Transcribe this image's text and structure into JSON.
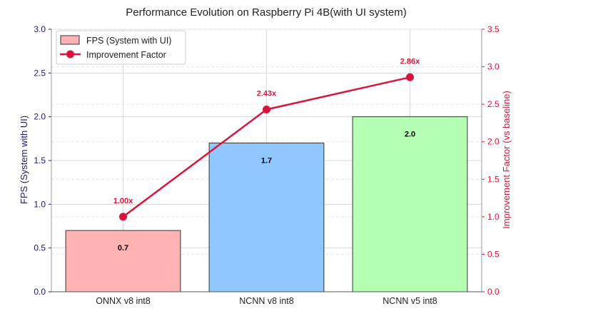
{
  "chart_data": {
    "type": "bar+line",
    "title": "Performance Evolution on Raspberry Pi 4B(with UI system)",
    "categories": [
      "ONNX v8 int8",
      "NCNN v8 int8",
      "NCNN v5 int8"
    ],
    "bar_series": {
      "name": "FPS (System with UI)",
      "values": [
        0.7,
        1.7,
        2.0
      ],
      "value_labels": [
        "0.7",
        "1.7",
        "2.0"
      ],
      "colors": [
        "#ffb3b3",
        "#91c7ff",
        "#b4ffb4"
      ]
    },
    "line_series": {
      "name": "Improvement Factor",
      "values": [
        1.0,
        2.43,
        2.86
      ],
      "value_labels": [
        "1.00x",
        "2.43x",
        "2.86x"
      ],
      "color": "#dc143c"
    },
    "ylabel_left": "FPS (System with UI)",
    "ylabel_right": "Improvement Factor (vs baseline)",
    "ylim_left": [
      0,
      3.0
    ],
    "ylim_right": [
      0,
      3.5
    ],
    "yticks_left": [
      "0.0",
      "0.5",
      "1.0",
      "1.5",
      "2.0",
      "2.5",
      "3.0"
    ],
    "yticks_right": [
      "0.0",
      "0.5",
      "1.0",
      "1.5",
      "2.0",
      "2.5",
      "3.0",
      "3.5"
    ],
    "legend_position": "top-left",
    "grid": true,
    "left_axis_color": "#191970",
    "right_axis_color": "#dc143c"
  }
}
